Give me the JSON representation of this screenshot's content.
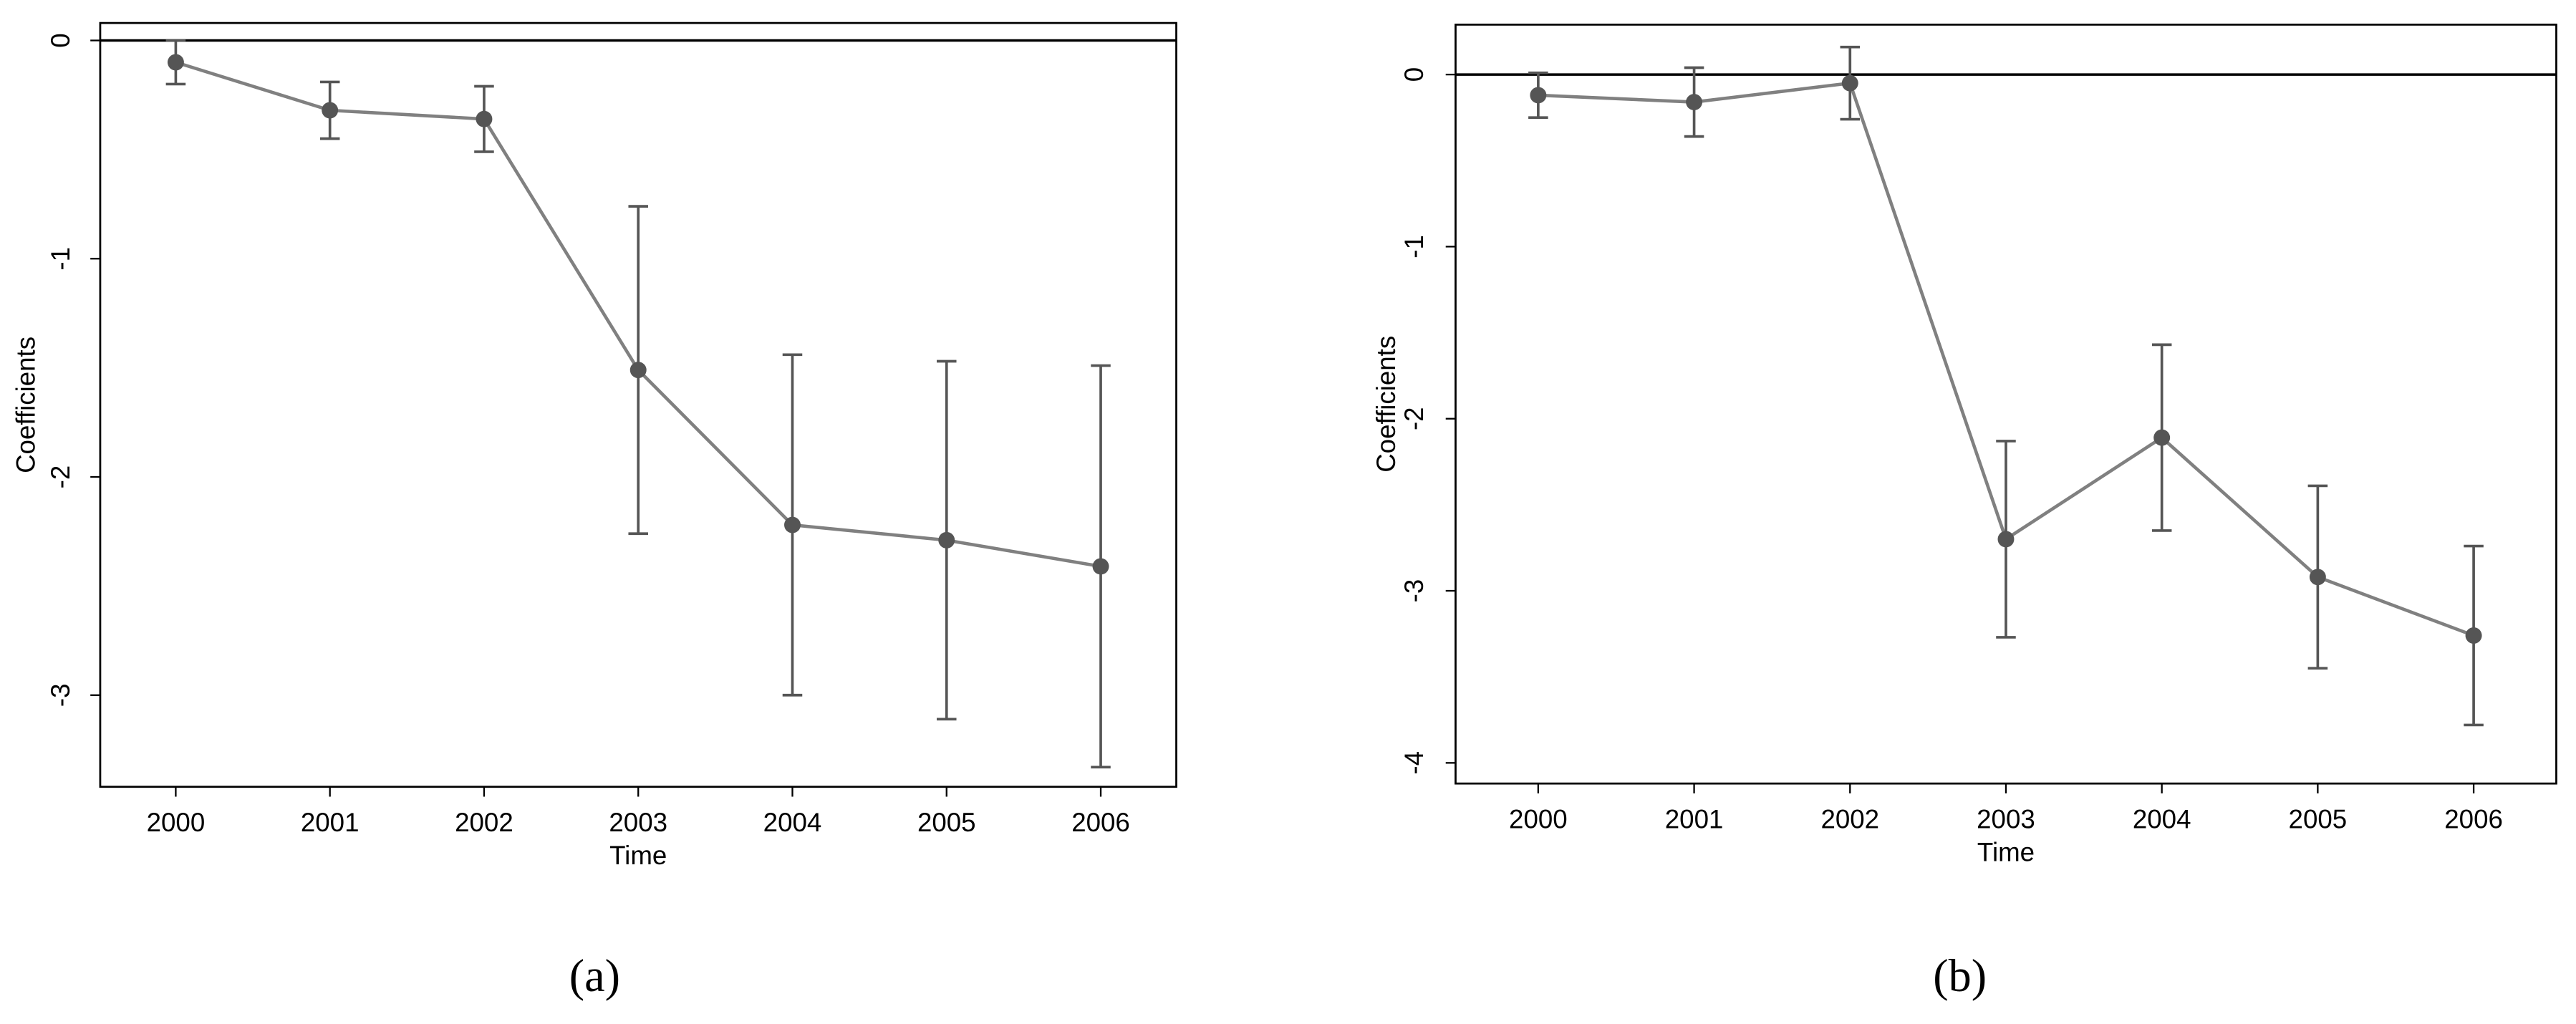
{
  "chart_data": [
    {
      "type": "errorbar-line",
      "panel_label": "(a)",
      "xlabel": "Time",
      "ylabel": "Coefficients",
      "x": [
        2000,
        2001,
        2002,
        2003,
        2004,
        2005,
        2006
      ],
      "values": [
        -0.1,
        -0.32,
        -0.36,
        -1.51,
        -2.22,
        -2.29,
        -2.41
      ],
      "errors": [
        0.1,
        0.13,
        0.15,
        0.75,
        0.78,
        0.82,
        0.92
      ],
      "xlim": [
        1999.51,
        2006.49
      ],
      "ylim": [
        -3.42,
        0.08
      ],
      "xticks": [
        2000,
        2001,
        2002,
        2003,
        2004,
        2005,
        2006
      ],
      "yticks": [
        0,
        -1,
        -2,
        -3
      ],
      "hline": 0,
      "line_color": "#808080",
      "marker_color": "#555555"
    },
    {
      "type": "errorbar-line",
      "panel_label": "(b)",
      "xlabel": "Time",
      "ylabel": "Coefficients",
      "x": [
        2000,
        2001,
        2002,
        2003,
        2004,
        2005,
        2006
      ],
      "values": [
        -0.12,
        -0.16,
        -0.05,
        -2.7,
        -2.11,
        -2.92,
        -3.26
      ],
      "errors": [
        0.13,
        0.2,
        0.21,
        0.57,
        0.54,
        0.53,
        0.52
      ],
      "xlim": [
        1999.47,
        2006.53
      ],
      "ylim": [
        -4.12,
        0.29
      ],
      "xticks": [
        2000,
        2001,
        2002,
        2003,
        2004,
        2005,
        2006
      ],
      "yticks": [
        0,
        -1,
        -2,
        -3,
        -4
      ],
      "hline": 0,
      "line_color": "#808080",
      "marker_color": "#555555"
    }
  ]
}
